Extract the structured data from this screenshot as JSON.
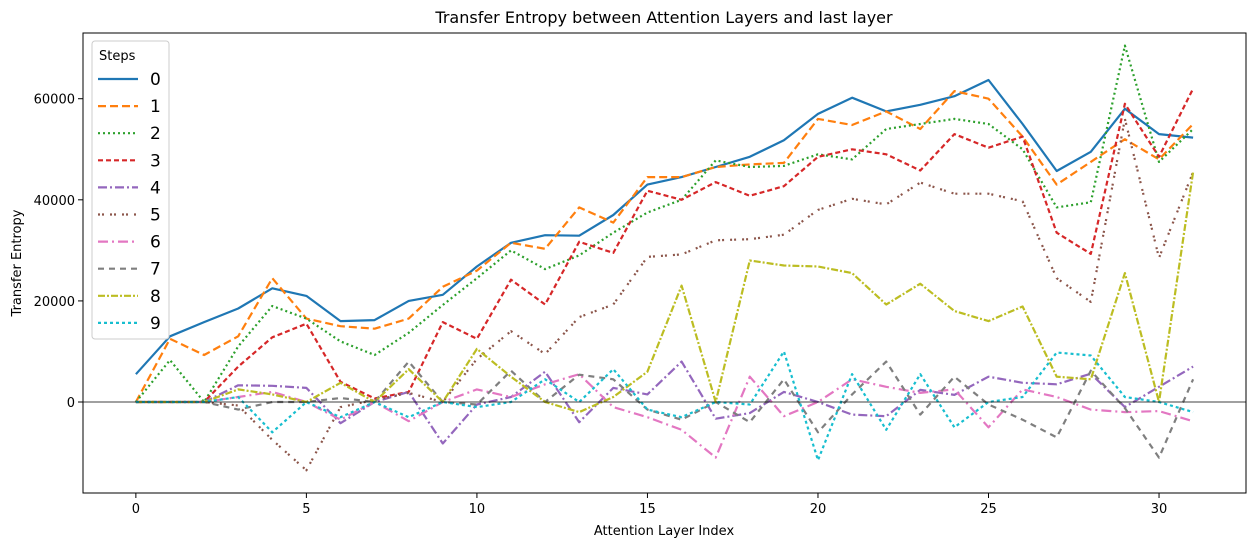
{
  "chart_data": {
    "type": "line",
    "title": "Transfer Entropy between Attention Layers and last layer",
    "xlabel": "Attention Layer Index",
    "ylabel": "Transfer Entropy",
    "xlim": [
      -1.55,
      32.55
    ],
    "ylim": [
      -18000,
      73000
    ],
    "xticks": [
      0,
      5,
      10,
      15,
      20,
      25,
      30
    ],
    "yticks": [
      0,
      20000,
      40000,
      60000
    ],
    "grid": false,
    "zero_line": true,
    "legend": {
      "title": "Steps",
      "position": "top-left"
    },
    "x": [
      0,
      1,
      2,
      3,
      4,
      5,
      6,
      7,
      8,
      9,
      10,
      11,
      12,
      13,
      14,
      15,
      16,
      17,
      18,
      19,
      20,
      21,
      22,
      23,
      24,
      25,
      26,
      27,
      28,
      29,
      30,
      31
    ],
    "series": [
      {
        "name": "0",
        "color": "#1f77b4",
        "dash": "solid",
        "values": [
          5500,
          13000,
          15800,
          18500,
          22500,
          21000,
          16000,
          16200,
          20000,
          21200,
          26800,
          31500,
          33000,
          32900,
          37000,
          43000,
          44500,
          46500,
          48500,
          51800,
          57000,
          60200,
          57500,
          58800,
          60500,
          63700,
          55000,
          45700,
          49500,
          58000,
          53000,
          52300
        ]
      },
      {
        "name": "1",
        "color": "#ff7f0e",
        "dash": "dashed",
        "values": [
          0,
          12500,
          9300,
          13000,
          24500,
          16500,
          15000,
          14500,
          16500,
          22800,
          26000,
          31500,
          30300,
          38500,
          35500,
          44500,
          44500,
          46500,
          47000,
          47300,
          56000,
          54800,
          57500,
          54000,
          61500,
          60000,
          52500,
          43000,
          47500,
          52000,
          48000,
          55000
        ]
      },
      {
        "name": "2",
        "color": "#2ca02c",
        "dash": "dotted",
        "values": [
          0,
          8300,
          0,
          11000,
          19000,
          16500,
          12000,
          9300,
          13700,
          19200,
          24500,
          30000,
          26300,
          29000,
          33500,
          37500,
          40000,
          47800,
          46500,
          46700,
          49000,
          48000,
          54000,
          55000,
          56000,
          55000,
          50000,
          38500,
          39500,
          70500,
          47500,
          54000
        ]
      },
      {
        "name": "3",
        "color": "#d62728",
        "dash": "dashed-fine",
        "values": [
          0,
          0,
          0,
          7000,
          12800,
          15500,
          4000,
          700,
          2000,
          15800,
          12500,
          24200,
          19300,
          31700,
          29500,
          41800,
          40000,
          43500,
          40800,
          42700,
          48500,
          50000,
          49000,
          45800,
          53000,
          50300,
          52500,
          33500,
          29300,
          59000,
          48500,
          62000
        ]
      },
      {
        "name": "4",
        "color": "#9467bd",
        "dash": "dashdot",
        "values": [
          0,
          0,
          0,
          3300,
          3200,
          2800,
          -4200,
          0,
          2000,
          -8200,
          -500,
          1000,
          6000,
          -4000,
          2800,
          1500,
          8000,
          -3300,
          -2200,
          2000,
          0,
          -2500,
          -2800,
          2400,
          1400,
          5000,
          3800,
          3500,
          5600,
          -1000,
          3000,
          7000
        ]
      },
      {
        "name": "5",
        "color": "#8c564b",
        "dash": "dotdot",
        "values": [
          0,
          0,
          0,
          -700,
          -7500,
          -13500,
          -1000,
          400,
          1800,
          0,
          8500,
          14000,
          9500,
          16800,
          19300,
          28700,
          29200,
          32000,
          32200,
          33100,
          38000,
          40200,
          39100,
          43400,
          41200,
          41200,
          39700,
          24500,
          19800,
          56000,
          28500,
          45500
        ]
      },
      {
        "name": "6",
        "color": "#e377c2",
        "dash": "dashdot-long",
        "values": [
          0,
          0,
          0,
          1000,
          2000,
          0,
          -3500,
          0,
          -3800,
          0,
          2500,
          1000,
          3500,
          5500,
          -1000,
          -3000,
          -5500,
          -11000,
          5000,
          -2800,
          0,
          4500,
          3000,
          1800,
          2500,
          -5000,
          2500,
          1000,
          -1500,
          -2000,
          -1800,
          -3800
        ]
      },
      {
        "name": "7",
        "color": "#7f7f7f",
        "dash": "dashed-long",
        "values": [
          0,
          0,
          0,
          -1500,
          0,
          0,
          800,
          0,
          8000,
          0,
          -500,
          6200,
          0,
          5400,
          4500,
          -1500,
          -3500,
          0,
          -4000,
          4500,
          -6000,
          1500,
          8000,
          -2500,
          5000,
          -500,
          -3500,
          -7000,
          6200,
          -1200,
          -11000,
          4500
        ]
      },
      {
        "name": "8",
        "color": "#bcbd22",
        "dash": "dashdot-fine",
        "values": [
          0,
          0,
          0,
          2500,
          1500,
          0,
          3800,
          0,
          6500,
          0,
          10500,
          5000,
          0,
          -2000,
          1000,
          6000,
          23000,
          0,
          28000,
          27000,
          26800,
          25500,
          19300,
          23400,
          18000,
          16000,
          18900,
          5000,
          4500,
          25500,
          0,
          45500
        ]
      },
      {
        "name": "9",
        "color": "#17becf",
        "dash": "dotted-fine",
        "values": [
          0,
          0,
          0,
          1000,
          -6000,
          0,
          -3000,
          0,
          -3000,
          0,
          -1000,
          0,
          4500,
          0,
          6500,
          -1500,
          -3000,
          0,
          -500,
          10000,
          -11500,
          5500,
          -5500,
          5500,
          -5000,
          0,
          1000,
          9800,
          9200,
          1000,
          0,
          -2000
        ]
      }
    ]
  }
}
